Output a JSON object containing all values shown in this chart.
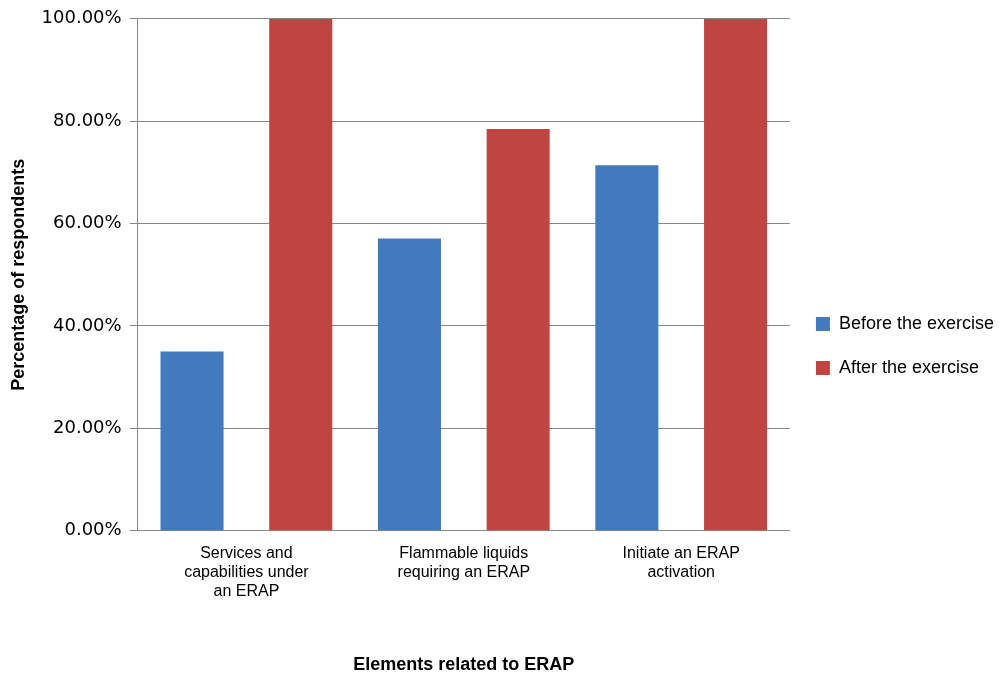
{
  "chart_data": {
    "type": "bar",
    "xlabel": "Elements related to ERAP",
    "ylabel": "Percentage of respondents",
    "categories": [
      "Services and capabilities under an ERAP",
      "Flammable liquids requiring an ERAP",
      "Initiate an ERAP activation"
    ],
    "series": [
      {
        "name": "Before the exercise",
        "color": "#4379bd",
        "values": [
          35,
          57.1,
          71.4
        ]
      },
      {
        "name": "After the exercise",
        "color": "#be4541",
        "values": [
          100,
          78.5,
          100
        ]
      }
    ],
    "ylim": [
      0,
      100
    ],
    "yticks": [
      {
        "value": 0,
        "label": "0.00%"
      },
      {
        "value": 20,
        "label": "20.00%"
      },
      {
        "value": 40,
        "label": "40.00%"
      },
      {
        "value": 60,
        "label": "60.00%"
      },
      {
        "value": 80,
        "label": "80.00%"
      },
      {
        "value": 100,
        "label": "100.00%"
      }
    ],
    "grid": "y",
    "legend": "right"
  }
}
